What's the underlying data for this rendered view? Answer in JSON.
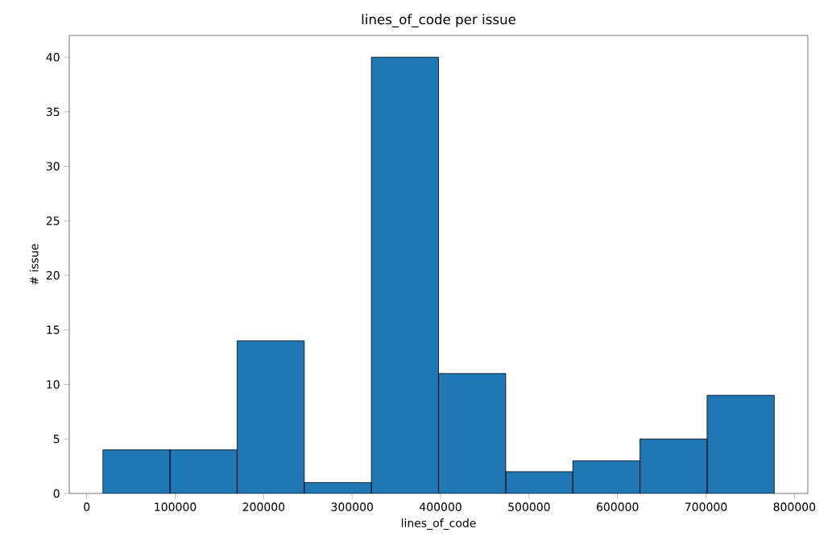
{
  "chart_data": {
    "type": "histogram",
    "title": "lines_of_code per issue",
    "xlabel": "lines_of_code",
    "ylabel": "# issue",
    "bins": [
      18200,
      94100,
      170000,
      245900,
      321800,
      397700,
      473600,
      549500,
      625400,
      701300,
      777200
    ],
    "values": [
      4,
      4,
      14,
      1,
      40,
      11,
      2,
      3,
      5,
      9
    ],
    "color": "#1f77b4",
    "xlim": [
      -19750,
      815150
    ],
    "ylim": [
      0,
      42
    ],
    "xticks": [
      0,
      100000,
      200000,
      300000,
      400000,
      500000,
      600000,
      700000,
      800000
    ],
    "yticks": [
      0,
      5,
      10,
      15,
      20,
      25,
      30,
      35,
      40
    ],
    "grid": false
  }
}
